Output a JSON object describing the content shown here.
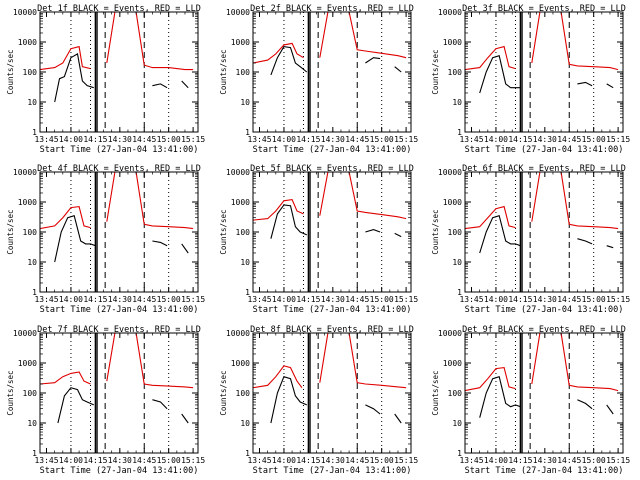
{
  "chart_data": [
    {
      "type": "line",
      "title": "Det 1f BLACK = Events, RED = LLD",
      "xlabel": "Start Time (27-Jan-04 13:41:00)",
      "ylabel": "Counts/sec",
      "y_scale": "log",
      "ylim": [
        1,
        10000
      ],
      "x_ticks": [
        "13:45",
        "14:00",
        "14:15",
        "14:30",
        "14:45",
        "15:00",
        "15:15"
      ],
      "y_ticks": [
        "1",
        "10",
        "100",
        "1000",
        "10000"
      ],
      "grid": false,
      "series": [
        {
          "color": "#e00000",
          "x": [
            "13:41",
            "13:50",
            "13:55",
            "14:00",
            "14:05",
            "14:07",
            "14:12",
            "14:17",
            "14:22",
            "14:27",
            "14:30",
            "14:35",
            "14:40",
            "14:45",
            "14:50",
            "15:00",
            "15:10",
            "15:15"
          ],
          "y": [
            120,
            140,
            200,
            600,
            700,
            150,
            130,
            null,
            200,
            10000,
            10000,
            10000,
            10000,
            170,
            140,
            140,
            120,
            120
          ]
        },
        {
          "color": "#000000",
          "x": [
            "13:50",
            "13:53",
            "13:56",
            "14:00",
            "14:04",
            "14:07",
            "14:10",
            "14:14",
            "14:45",
            "14:50",
            "14:55",
            "14:59",
            "15:06",
            "15:08",
            "15:12"
          ],
          "y": [
            10,
            60,
            70,
            300,
            400,
            50,
            35,
            30,
            null,
            35,
            40,
            30,
            null,
            50,
            30
          ]
        }
      ]
    },
    {
      "type": "line",
      "title": "Det 2f BLACK = Events, RED = LLD",
      "xlabel": "Start Time (27-Jan-04 13:41:00)",
      "ylabel": "Counts/sec",
      "y_scale": "log",
      "ylim": [
        1,
        10000
      ],
      "x_ticks": [
        "13:45",
        "14:00",
        "14:15",
        "14:30",
        "14:45",
        "15:00",
        "15:15"
      ],
      "y_ticks": [
        "1",
        "10",
        "100",
        "1000",
        "10000"
      ],
      "grid": false,
      "series": [
        {
          "color": "#e00000",
          "x": [
            "13:41",
            "13:50",
            "13:55",
            "14:00",
            "14:05",
            "14:08",
            "14:12",
            "14:17",
            "14:22",
            "14:27",
            "14:30",
            "14:35",
            "14:40",
            "14:45",
            "14:50",
            "15:00",
            "15:10",
            "15:15"
          ],
          "y": [
            200,
            250,
            400,
            800,
            900,
            400,
            300,
            null,
            300,
            10000,
            10000,
            10000,
            10000,
            550,
            500,
            420,
            350,
            300
          ]
        },
        {
          "color": "#000000",
          "x": [
            "13:52",
            "13:56",
            "14:00",
            "14:04",
            "14:07",
            "14:10",
            "14:14",
            "14:45",
            "14:50",
            "14:55",
            "14:59",
            "15:04",
            "15:08",
            "15:12"
          ],
          "y": [
            80,
            300,
            700,
            650,
            200,
            150,
            100,
            null,
            200,
            300,
            280,
            null,
            150,
            100
          ]
        }
      ]
    },
    {
      "type": "line",
      "title": "Det 3f BLACK = Events, RED = LLD",
      "xlabel": "Start Time (27-Jan-04 13:41:00)",
      "ylabel": "Counts/sec",
      "y_scale": "log",
      "ylim": [
        1,
        10000
      ],
      "x_ticks": [
        "13:45",
        "14:00",
        "14:15",
        "14:30",
        "14:45",
        "15:00",
        "15:15"
      ],
      "y_ticks": [
        "1",
        "10",
        "100",
        "1000",
        "10000"
      ],
      "grid": false,
      "series": [
        {
          "color": "#e00000",
          "x": [
            "13:41",
            "13:50",
            "13:55",
            "14:00",
            "14:05",
            "14:08",
            "14:12",
            "14:17",
            "14:22",
            "14:27",
            "14:30",
            "14:35",
            "14:40",
            "14:45",
            "14:50",
            "15:00",
            "15:10",
            "15:15"
          ],
          "y": [
            120,
            140,
            300,
            600,
            700,
            150,
            130,
            null,
            200,
            10000,
            10000,
            10000,
            10000,
            180,
            160,
            150,
            140,
            120
          ]
        },
        {
          "color": "#000000",
          "x": [
            "13:50",
            "13:54",
            "13:58",
            "14:02",
            "14:06",
            "14:09",
            "14:12",
            "14:15",
            "14:45",
            "14:50",
            "14:55",
            "14:59",
            "15:04",
            "15:08",
            "15:12"
          ],
          "y": [
            20,
            100,
            300,
            350,
            40,
            30,
            30,
            30,
            null,
            40,
            45,
            35,
            null,
            40,
            30
          ]
        }
      ]
    },
    {
      "type": "line",
      "title": "Det 4f BLACK = Events, RED = LLD",
      "xlabel": "Start Time (27-Jan-04 13:41:00)",
      "ylabel": "Counts/sec",
      "y_scale": "log",
      "ylim": [
        1,
        10000
      ],
      "x_ticks": [
        "13:45",
        "14:00",
        "14:15",
        "14:30",
        "14:45",
        "15:00",
        "15:15"
      ],
      "y_ticks": [
        "1",
        "10",
        "100",
        "1000",
        "10000"
      ],
      "grid": false,
      "series": [
        {
          "color": "#e00000",
          "x": [
            "13:41",
            "13:50",
            "13:55",
            "14:00",
            "14:05",
            "14:08",
            "14:12",
            "14:17",
            "14:22",
            "14:27",
            "14:30",
            "14:35",
            "14:40",
            "14:45",
            "14:50",
            "15:00",
            "15:10",
            "15:15"
          ],
          "y": [
            130,
            160,
            300,
            650,
            700,
            160,
            140,
            null,
            220,
            10000,
            10000,
            10000,
            10000,
            180,
            160,
            150,
            140,
            130
          ]
        },
        {
          "color": "#000000",
          "x": [
            "13:50",
            "13:54",
            "13:58",
            "14:02",
            "14:06",
            "14:09",
            "14:12",
            "14:15",
            "14:45",
            "14:50",
            "14:55",
            "14:59",
            "15:04",
            "15:08",
            "15:12"
          ],
          "y": [
            10,
            100,
            300,
            350,
            50,
            40,
            40,
            35,
            null,
            50,
            45,
            35,
            null,
            40,
            20
          ]
        }
      ]
    },
    {
      "type": "line",
      "title": "Det 5f BLACK = Events, RED = LLD",
      "xlabel": "Start Time (27-Jan-04 13:41:00)",
      "ylabel": "Counts/sec",
      "y_scale": "log",
      "ylim": [
        1,
        10000
      ],
      "x_ticks": [
        "13:45",
        "14:00",
        "14:15",
        "14:30",
        "14:45",
        "15:00",
        "15:15"
      ],
      "y_ticks": [
        "1",
        "10",
        "100",
        "1000",
        "10000"
      ],
      "grid": false,
      "series": [
        {
          "color": "#e00000",
          "x": [
            "13:41",
            "13:50",
            "13:55",
            "14:00",
            "14:05",
            "14:08",
            "14:12",
            "14:17",
            "14:22",
            "14:27",
            "14:30",
            "14:35",
            "14:40",
            "14:45",
            "14:50",
            "15:00",
            "15:10",
            "15:15"
          ],
          "y": [
            250,
            280,
            500,
            1100,
            1200,
            500,
            400,
            null,
            350,
            10000,
            10000,
            10000,
            10000,
            500,
            450,
            380,
            320,
            280
          ]
        },
        {
          "color": "#000000",
          "x": [
            "13:52",
            "13:56",
            "14:00",
            "14:04",
            "14:07",
            "14:10",
            "14:14",
            "14:45",
            "14:50",
            "14:55",
            "14:59",
            "15:04",
            "15:08",
            "15:12"
          ],
          "y": [
            60,
            400,
            800,
            750,
            150,
            100,
            80,
            null,
            100,
            120,
            100,
            null,
            90,
            70
          ]
        }
      ]
    },
    {
      "type": "line",
      "title": "Det 6f BLACK = Events, RED = LLD",
      "xlabel": "Start Time (27-Jan-04 13:41:00)",
      "ylabel": "Counts/sec",
      "y_scale": "log",
      "ylim": [
        1,
        10000
      ],
      "x_ticks": [
        "13:45",
        "14:00",
        "14:15",
        "14:30",
        "14:45",
        "15:00",
        "15:15"
      ],
      "y_ticks": [
        "1",
        "10",
        "100",
        "1000",
        "10000"
      ],
      "grid": false,
      "series": [
        {
          "color": "#e00000",
          "x": [
            "13:41",
            "13:50",
            "13:55",
            "14:00",
            "14:05",
            "14:08",
            "14:12",
            "14:17",
            "14:22",
            "14:27",
            "14:30",
            "14:35",
            "14:40",
            "14:45",
            "14:50",
            "15:00",
            "15:10",
            "15:15"
          ],
          "y": [
            130,
            150,
            300,
            600,
            700,
            160,
            140,
            null,
            220,
            10000,
            10000,
            10000,
            10000,
            180,
            160,
            150,
            140,
            130
          ]
        },
        {
          "color": "#000000",
          "x": [
            "13:50",
            "13:54",
            "13:58",
            "14:02",
            "14:06",
            "14:09",
            "14:12",
            "14:15",
            "14:45",
            "14:50",
            "14:55",
            "14:59",
            "15:04",
            "15:08",
            "15:12"
          ],
          "y": [
            20,
            100,
            300,
            350,
            50,
            40,
            40,
            35,
            null,
            60,
            50,
            40,
            null,
            35,
            30
          ]
        }
      ]
    },
    {
      "type": "line",
      "title": "Det 7f BLACK = Events, RED = LLD",
      "xlabel": "Start Time (27-Jan-04 13:41:00)",
      "ylabel": "Counts/sec",
      "y_scale": "log",
      "ylim": [
        1,
        10000
      ],
      "x_ticks": [
        "13:45",
        "14:00",
        "14:15",
        "14:30",
        "14:45",
        "15:00",
        "15:15"
      ],
      "y_ticks": [
        "1",
        "10",
        "100",
        "1000",
        "10000"
      ],
      "grid": false,
      "series": [
        {
          "color": "#e00000",
          "x": [
            "13:41",
            "13:50",
            "13:55",
            "14:00",
            "14:05",
            "14:08",
            "14:12",
            "14:17",
            "14:22",
            "14:27",
            "14:30",
            "14:35",
            "14:40",
            "14:45",
            "14:50",
            "15:00",
            "15:10",
            "15:15"
          ],
          "y": [
            200,
            220,
            350,
            450,
            500,
            250,
            200,
            null,
            250,
            10000,
            10000,
            10000,
            10000,
            200,
            180,
            170,
            160,
            150
          ]
        },
        {
          "color": "#000000",
          "x": [
            "13:52",
            "13:56",
            "14:00",
            "14:04",
            "14:07",
            "14:10",
            "14:14",
            "14:45",
            "14:50",
            "14:55",
            "14:59",
            "15:04",
            "15:08",
            "15:12"
          ],
          "y": [
            10,
            80,
            150,
            130,
            60,
            50,
            40,
            null,
            60,
            50,
            30,
            null,
            20,
            10
          ]
        }
      ]
    },
    {
      "type": "line",
      "title": "Det 8f BLACK = Events, RED = LLD",
      "xlabel": "Start Time (27-Jan-04 13:41:00)",
      "ylabel": "Counts/sec",
      "y_scale": "log",
      "ylim": [
        1,
        10000
      ],
      "x_ticks": [
        "13:45",
        "14:00",
        "14:15",
        "14:30",
        "14:45",
        "15:00",
        "15:15"
      ],
      "y_ticks": [
        "1",
        "10",
        "100",
        "1000",
        "10000"
      ],
      "grid": false,
      "series": [
        {
          "color": "#e00000",
          "x": [
            "13:41",
            "13:50",
            "13:55",
            "14:00",
            "14:04",
            "14:08",
            "14:11",
            "14:17",
            "14:22",
            "14:27",
            "14:30",
            "14:35",
            "14:40",
            "14:45",
            "14:50",
            "15:00",
            "15:10",
            "15:15"
          ],
          "y": [
            150,
            180,
            350,
            800,
            700,
            250,
            150,
            null,
            220,
            10000,
            10000,
            10000,
            10000,
            220,
            200,
            180,
            160,
            150
          ]
        },
        {
          "color": "#000000",
          "x": [
            "13:52",
            "13:56",
            "14:00",
            "14:04",
            "14:07",
            "14:10",
            "14:14",
            "14:45",
            "14:50",
            "14:55",
            "14:59",
            "15:04",
            "15:08",
            "15:12"
          ],
          "y": [
            10,
            100,
            350,
            300,
            80,
            50,
            40,
            null,
            40,
            30,
            20,
            null,
            20,
            10
          ]
        }
      ]
    },
    {
      "type": "line",
      "title": "Det 9f BLACK = Events, RED = LLD",
      "xlabel": "Start Time (27-Jan-04 13:41:00)",
      "ylabel": "Counts/sec",
      "y_scale": "log",
      "ylim": [
        1,
        10000
      ],
      "x_ticks": [
        "13:45",
        "14:00",
        "14:15",
        "14:30",
        "14:45",
        "15:00",
        "15:15"
      ],
      "y_ticks": [
        "1",
        "10",
        "100",
        "1000",
        "10000"
      ],
      "grid": false,
      "series": [
        {
          "color": "#e00000",
          "x": [
            "13:41",
            "13:50",
            "13:55",
            "14:00",
            "14:05",
            "14:08",
            "14:12",
            "14:17",
            "14:22",
            "14:27",
            "14:30",
            "14:35",
            "14:40",
            "14:45",
            "14:50",
            "15:00",
            "15:10",
            "15:15"
          ],
          "y": [
            120,
            150,
            300,
            650,
            700,
            160,
            140,
            null,
            200,
            10000,
            10000,
            10000,
            10000,
            180,
            160,
            150,
            140,
            120
          ]
        },
        {
          "color": "#000000",
          "x": [
            "13:50",
            "13:54",
            "13:58",
            "14:02",
            "14:06",
            "14:09",
            "14:12",
            "14:15",
            "14:45",
            "14:50",
            "14:55",
            "14:59",
            "15:04",
            "15:08",
            "15:12"
          ],
          "y": [
            15,
            100,
            300,
            350,
            45,
            35,
            40,
            35,
            null,
            60,
            45,
            30,
            null,
            40,
            20
          ]
        }
      ]
    }
  ]
}
